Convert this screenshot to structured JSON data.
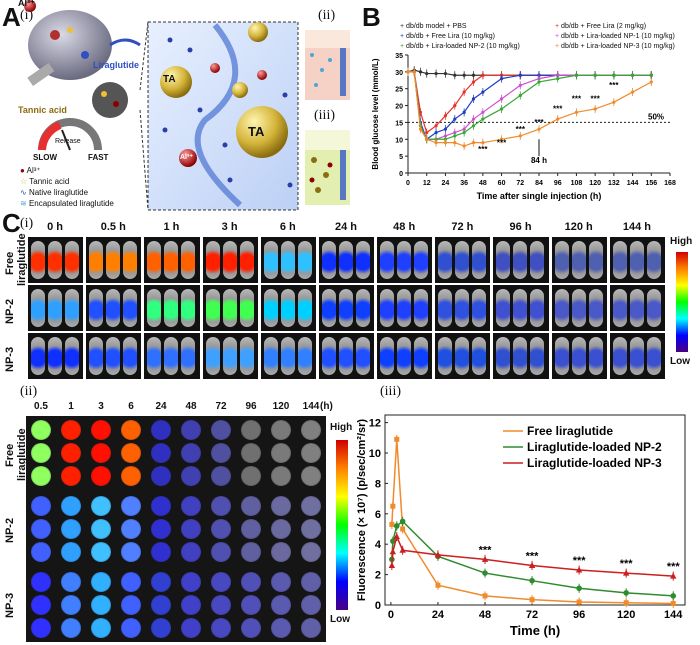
{
  "panelA": {
    "letter": "A",
    "sub_i": "(i)",
    "sub_ii": "(ii)",
    "sub_iii": "(iii)",
    "ion_top": "Al³⁺",
    "liraglutide_label": "Liraglutide",
    "tannic_label": "Tannic acid",
    "release_label": "Release",
    "slow": "SLOW",
    "fast": "FAST",
    "legend": [
      "Al³⁺",
      "Tannic acid",
      "Native liraglutide",
      "Encapsulated liraglutide"
    ],
    "ta_label": "TA",
    "al_label": "Al³⁺"
  },
  "panelB": {
    "letter": "B",
    "legend_left": [
      "db/db model + PBS",
      "db/db + Free Lira (10 mg/kg)",
      "db/db + Lira-loaded NP-2  (10 mg/kg)"
    ],
    "legend_right": [
      "db/db + Free Lira (2 mg/kg)",
      "db/db + Lira-loaded NP-1 (10 mg/kg)",
      "db/db + Lira-loaded NP-3 (10 mg/kg)"
    ],
    "ylabel": "Blood glucose level (mmol/L)",
    "xlabel": "Time after single injection (h)",
    "fifty": "50%",
    "arrow_label": "84 h",
    "sig": "***"
  },
  "panelC": {
    "letter": "C",
    "sub_i": "(i)",
    "sub_ii": "(ii)",
    "sub_iii": "(iii)",
    "timepoints": [
      "0 h",
      "0.5 h",
      "1 h",
      "3 h",
      "6 h",
      "24 h",
      "48 h",
      "72 h",
      "96 h",
      "120 h",
      "144 h"
    ],
    "rows": [
      "Free liraglutide",
      "NP-2",
      "NP-3"
    ],
    "scale_high": "High",
    "scale_low": "Low",
    "well_times": [
      "0.5",
      "1",
      "3",
      "6",
      "24",
      "48",
      "72",
      "96",
      "120",
      "144"
    ],
    "well_unit": "(h)"
  },
  "chart_data": [
    {
      "type": "line",
      "title": "",
      "xlabel": "Time after single injection (h)",
      "ylabel": "Blood glucose level (mmol/L)",
      "x": [
        0,
        4,
        8,
        12,
        18,
        24,
        30,
        36,
        42,
        48,
        60,
        72,
        84,
        96,
        108,
        120,
        132,
        144,
        156
      ],
      "xticks": [
        0,
        12,
        24,
        36,
        48,
        60,
        72,
        84,
        96,
        108,
        120,
        132,
        144,
        156,
        168
      ],
      "yticks": [
        0,
        5,
        10,
        15,
        20,
        25,
        30,
        35
      ],
      "xlim": [
        0,
        168
      ],
      "ylim": [
        0,
        35
      ],
      "series": [
        {
          "name": "db/db model + PBS",
          "color": "#333333",
          "values": [
            30,
            30.5,
            30,
            29.5,
            29.5,
            29.5,
            29,
            29,
            29,
            29,
            29,
            29,
            29,
            29,
            29,
            29,
            29,
            29,
            29
          ]
        },
        {
          "name": "db/db + Free Lira (2 mg/kg)",
          "color": "#e8332c",
          "values": [
            30,
            30,
            18,
            12,
            14,
            17,
            20,
            24,
            27,
            29,
            29,
            29,
            29,
            29,
            29,
            29,
            29,
            29,
            29
          ]
        },
        {
          "name": "db/db + Free Lira (10 mg/kg)",
          "color": "#1f3fbf",
          "values": [
            30,
            30,
            15,
            10,
            12,
            13,
            16,
            18,
            22,
            24,
            28,
            29,
            29,
            29,
            29,
            29,
            29,
            29,
            29
          ]
        },
        {
          "name": "db/db + Lira-loaded NP-1 (10 mg/kg)",
          "color": "#d24fd6",
          "values": [
            30,
            30,
            14,
            10,
            10,
            11,
            12,
            13,
            16,
            18,
            22,
            26,
            28,
            29,
            29,
            29,
            29,
            29,
            29
          ]
        },
        {
          "name": "db/db + Lira-loaded NP-2  (10 mg/kg)",
          "color": "#3aa635",
          "values": [
            30,
            30,
            14,
            10,
            10,
            10,
            11,
            12,
            14,
            16,
            19,
            23,
            27,
            28,
            29,
            29,
            29,
            29,
            29
          ]
        },
        {
          "name": "db/db + Lira-loaded NP-3 (10 mg/kg)",
          "color": "#f08a2a",
          "values": [
            30,
            30,
            13,
            10,
            9,
            9,
            9,
            8,
            9,
            9,
            10,
            11,
            13,
            16,
            18,
            19,
            21,
            24,
            27
          ]
        }
      ],
      "reference_line": {
        "y": 15,
        "label": "50%"
      }
    },
    {
      "type": "line",
      "title": "",
      "xlabel": "Time (h)",
      "ylabel": "Fluorescence (× 10⁷) (p/sec/cm²/sr)",
      "xticks": [
        0,
        24,
        48,
        72,
        96,
        120,
        144
      ],
      "yticks": [
        0,
        2,
        4,
        6,
        8,
        10,
        12
      ],
      "xlim": [
        -3,
        150
      ],
      "ylim": [
        0,
        12.5
      ],
      "x": [
        0.5,
        1,
        3,
        6,
        24,
        48,
        72,
        96,
        120,
        144
      ],
      "series": [
        {
          "name": "Free liraglutide",
          "color": "#f08a2a",
          "values": [
            5.3,
            6.5,
            10.9,
            5.0,
            1.3,
            0.6,
            0.35,
            0.2,
            0.15,
            0.1
          ]
        },
        {
          "name": "Liraglutide-loaded NP-2",
          "color": "#2e8b2e",
          "values": [
            3.0,
            4.2,
            5.2,
            5.5,
            3.2,
            2.1,
            1.6,
            1.1,
            0.8,
            0.6
          ]
        },
        {
          "name": "Liraglutide-loaded NP-3",
          "color": "#cc1f1f",
          "values": [
            2.6,
            3.5,
            4.5,
            3.6,
            3.3,
            3.0,
            2.6,
            2.3,
            2.1,
            1.9
          ]
        }
      ],
      "annotations": [
        "***",
        "***",
        "***",
        "***",
        "***"
      ]
    }
  ]
}
